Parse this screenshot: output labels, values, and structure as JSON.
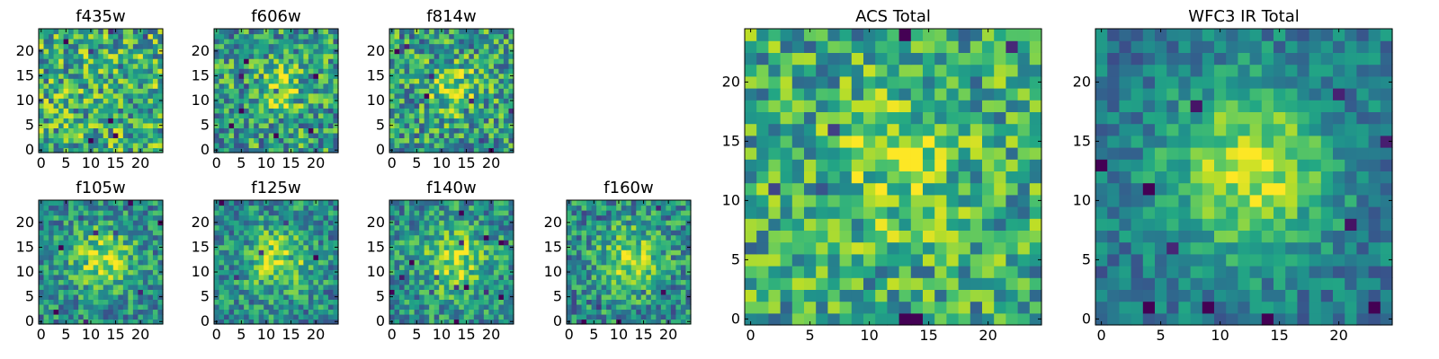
{
  "chart_data": [
    {
      "type": "heatmap",
      "title": "f435w",
      "xlim": [
        0,
        24
      ],
      "ylim": [
        0,
        24
      ],
      "xticks": [
        0,
        5,
        10,
        15,
        20
      ],
      "yticks": [
        0,
        5,
        10,
        15,
        20
      ],
      "seed": 11,
      "sigma": 0.0,
      "amp": 0.05,
      "noise": 0.35,
      "base": 0.62
    },
    {
      "type": "heatmap",
      "title": "f606w",
      "xlim": [
        0,
        24
      ],
      "ylim": [
        0,
        24
      ],
      "xticks": [
        0,
        5,
        10,
        15,
        20
      ],
      "yticks": [
        0,
        5,
        10,
        15,
        20
      ],
      "seed": 23,
      "sigma": 3.5,
      "amp": 0.28,
      "noise": 0.33,
      "base": 0.55
    },
    {
      "type": "heatmap",
      "title": "f814w",
      "xlim": [
        0,
        24
      ],
      "ylim": [
        0,
        24
      ],
      "xticks": [
        0,
        5,
        10,
        15,
        20
      ],
      "yticks": [
        0,
        5,
        10,
        15,
        20
      ],
      "seed": 37,
      "sigma": 3.5,
      "amp": 0.3,
      "noise": 0.33,
      "base": 0.55
    },
    {
      "type": "heatmap",
      "title": "f105w",
      "xlim": [
        0,
        24
      ],
      "ylim": [
        0,
        24
      ],
      "xticks": [
        0,
        5,
        10,
        15,
        20
      ],
      "yticks": [
        0,
        5,
        10,
        15,
        20
      ],
      "seed": 41,
      "sigma": 4.5,
      "amp": 0.38,
      "noise": 0.26,
      "base": 0.48
    },
    {
      "type": "heatmap",
      "title": "f125w",
      "xlim": [
        0,
        24
      ],
      "ylim": [
        0,
        24
      ],
      "xticks": [
        0,
        5,
        10,
        15,
        20
      ],
      "yticks": [
        0,
        5,
        10,
        15,
        20
      ],
      "seed": 53,
      "sigma": 4.5,
      "amp": 0.38,
      "noise": 0.26,
      "base": 0.48
    },
    {
      "type": "heatmap",
      "title": "f140w",
      "xlim": [
        0,
        24
      ],
      "ylim": [
        0,
        24
      ],
      "xticks": [
        0,
        5,
        10,
        15,
        20
      ],
      "yticks": [
        0,
        5,
        10,
        15,
        20
      ],
      "seed": 67,
      "sigma": 4.5,
      "amp": 0.36,
      "noise": 0.26,
      "base": 0.5
    },
    {
      "type": "heatmap",
      "title": "f160w",
      "xlim": [
        0,
        24
      ],
      "ylim": [
        0,
        24
      ],
      "xticks": [
        0,
        5,
        10,
        15,
        20
      ],
      "yticks": [
        0,
        5,
        10,
        15,
        20
      ],
      "seed": 79,
      "sigma": 4.5,
      "amp": 0.38,
      "noise": 0.28,
      "base": 0.48
    },
    {
      "type": "heatmap",
      "title": "ACS Total",
      "xlim": [
        0,
        24
      ],
      "ylim": [
        0,
        24
      ],
      "xticks": [
        0,
        5,
        10,
        15,
        20
      ],
      "yticks": [
        0,
        5,
        10,
        15,
        20
      ],
      "seed": 97,
      "sigma": 4.0,
      "amp": 0.22,
      "noise": 0.3,
      "base": 0.6
    },
    {
      "type": "heatmap",
      "title": "WFC3 IR Total",
      "xlim": [
        0,
        24
      ],
      "ylim": [
        0,
        24
      ],
      "xticks": [
        0,
        5,
        10,
        15,
        20
      ],
      "yticks": [
        0,
        5,
        10,
        15,
        20
      ],
      "seed": 131,
      "sigma": 5.0,
      "amp": 0.5,
      "noise": 0.18,
      "base": 0.4
    }
  ],
  "colormap": "viridis",
  "colors": {
    "frame": "#000000",
    "background": "#ffffff"
  }
}
